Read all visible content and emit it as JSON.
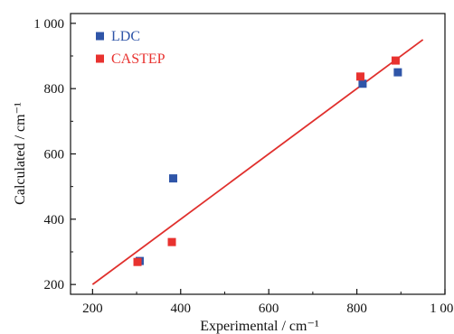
{
  "chart_data": {
    "type": "scatter",
    "title": "",
    "xlabel": "Experimental / cm⁻¹",
    "ylabel": "Calculated / cm⁻¹",
    "xlim": [
      150,
      1000
    ],
    "ylim": [
      170,
      1030
    ],
    "x_ticks": [
      200,
      400,
      600,
      800,
      1000
    ],
    "x_tick_labels": [
      "200",
      "400",
      "600",
      "800",
      "1 000"
    ],
    "y_ticks": [
      200,
      400,
      600,
      800,
      1000
    ],
    "y_tick_labels": [
      "200",
      "400",
      "600",
      "800",
      "1 000"
    ],
    "grid": false,
    "legend_position": "top-left",
    "series": [
      {
        "name": "LDC",
        "color": "#2f55a8",
        "marker": "square",
        "points": [
          {
            "x": 307,
            "y": 272
          },
          {
            "x": 383,
            "y": 525
          },
          {
            "x": 813,
            "y": 815
          },
          {
            "x": 893,
            "y": 850
          }
        ]
      },
      {
        "name": "CASTEP",
        "color": "#e8322f",
        "marker": "square",
        "points": [
          {
            "x": 302,
            "y": 269
          },
          {
            "x": 380,
            "y": 330
          },
          {
            "x": 808,
            "y": 837
          },
          {
            "x": 888,
            "y": 886
          }
        ]
      }
    ],
    "fit_line": {
      "color": "#e0302d",
      "x": [
        200,
        950
      ],
      "y": [
        200,
        950
      ]
    }
  }
}
